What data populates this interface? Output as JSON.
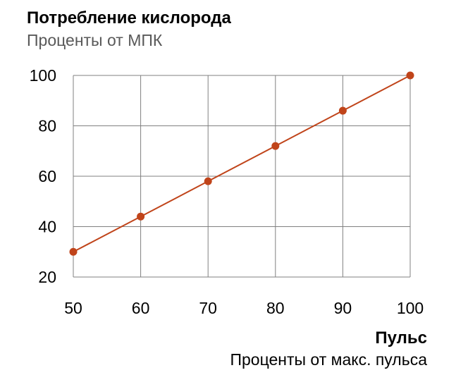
{
  "chart_data": {
    "type": "line",
    "title": "Потребление кислорода",
    "subtitle": "Проценты от МПК",
    "xlabel": "Пульс",
    "xsublabel": "Проценты от макс. пульса",
    "ylabel": "",
    "x": [
      50,
      60,
      70,
      80,
      90,
      100
    ],
    "series": [
      {
        "values": [
          30,
          44,
          58,
          72,
          86,
          100
        ]
      }
    ],
    "xlim": [
      50,
      100
    ],
    "ylim": [
      20,
      100
    ],
    "xticks": [
      "50",
      "60",
      "70",
      "80",
      "90",
      "100"
    ],
    "yticks": [
      "20",
      "40",
      "60",
      "80",
      "100"
    ],
    "grid": true,
    "colors": {
      "line": "#c0441a",
      "marker": "#c0441a",
      "grid": "#808080"
    }
  }
}
